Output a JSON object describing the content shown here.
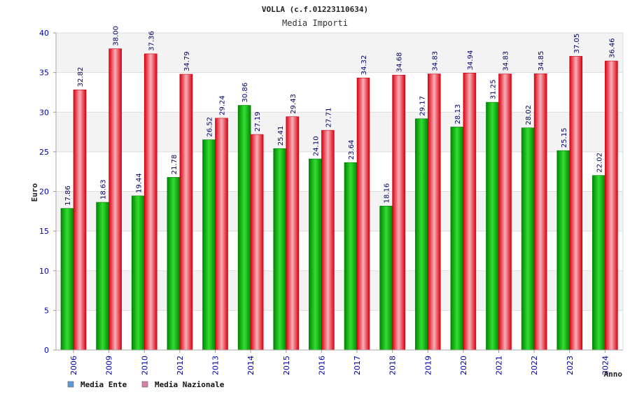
{
  "chart_data": {
    "type": "bar",
    "title": "VOLLA (c.f.01223110634)",
    "subtitle": "Media Importi",
    "xlabel": "Anno",
    "ylabel": "Euro",
    "ylim": [
      0,
      40
    ],
    "yticks": [
      "0",
      "5",
      "10",
      "15",
      "20",
      "25",
      "30",
      "35",
      "40"
    ],
    "grid": true,
    "legend_position": "bottom-left",
    "categories": [
      "2006",
      "2009",
      "2010",
      "2012",
      "2013",
      "2014",
      "2015",
      "2016",
      "2017",
      "2018",
      "2019",
      "2020",
      "2021",
      "2022",
      "2023",
      "2024"
    ],
    "series": [
      {
        "name": "Media Ente",
        "color": "#00aa00",
        "legend_color": "#5b9bd5",
        "values": [
          17.86,
          18.63,
          19.44,
          21.78,
          26.52,
          30.86,
          25.41,
          24.1,
          23.64,
          18.16,
          29.17,
          28.13,
          31.25,
          28.02,
          25.15,
          22.02
        ],
        "labels": [
          "17.86",
          "18.63",
          "19.44",
          "21.78",
          "26.52",
          "30.86",
          "25.41",
          "24.10",
          "23.64",
          "18.16",
          "29.17",
          "28.13",
          "31.25",
          "28.02",
          "25.15",
          "22.02"
        ]
      },
      {
        "name": "Media Nazionale",
        "color": "#ee1122",
        "legend_color": "#d67fa8",
        "values": [
          32.82,
          38.0,
          37.36,
          34.79,
          29.24,
          27.19,
          29.43,
          27.71,
          34.32,
          34.68,
          34.83,
          34.94,
          34.83,
          34.85,
          37.05,
          36.46
        ],
        "labels": [
          "32.82",
          "38.00",
          "37.36",
          "34.79",
          "29.24",
          "27.19",
          "29.43",
          "27.71",
          "34.32",
          "34.68",
          "34.83",
          "34.94",
          "34.83",
          "34.85",
          "37.05",
          "36.46"
        ]
      }
    ]
  }
}
